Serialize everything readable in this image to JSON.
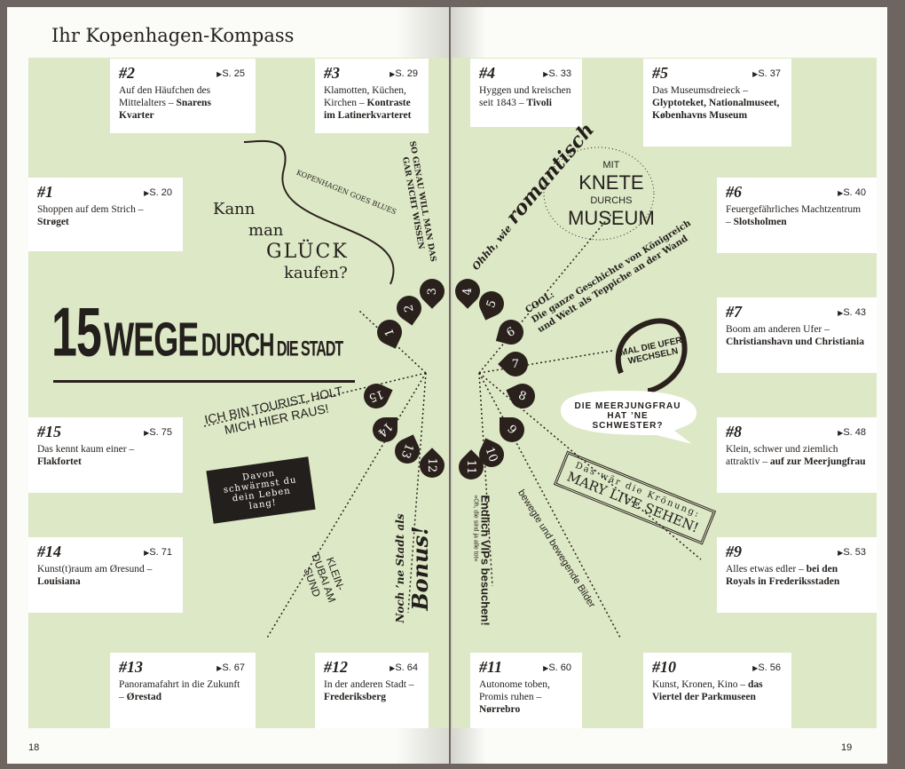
{
  "title": "Ihr Kopenhagen-Kompass",
  "headline": {
    "a": "15",
    "b": "WEGE",
    "c": "DURCH",
    "d": "DIE STADT"
  },
  "page_left": "18",
  "page_right": "19",
  "cards": [
    {
      "id": "#1",
      "page": "S. 20",
      "text": "Shoppen auf dem Strich –",
      "bold": "Strøget"
    },
    {
      "id": "#2",
      "page": "S. 25",
      "text": "Auf den Häufchen des Mittelalters –",
      "bold": "Snarens Kvarter"
    },
    {
      "id": "#3",
      "page": "S. 29",
      "text": "Klamotten, Küchen, Kirchen –",
      "bold": "Kontraste im Latinerkvarteret"
    },
    {
      "id": "#4",
      "page": "S. 33",
      "text": "Hyggen und kreischen seit 1843 –",
      "bold": "Tivoli"
    },
    {
      "id": "#5",
      "page": "S. 37",
      "text": "Das Museumsdreieck –",
      "bold": "Glyptoteket, Nationalmuseet, Københavns Museum"
    },
    {
      "id": "#6",
      "page": "S. 40",
      "text": "Feuergefährliches Machtzentrum –",
      "bold": "Slotsholmen"
    },
    {
      "id": "#7",
      "page": "S. 43",
      "text": "Boom am anderen Ufer –",
      "bold": "Christianshavn und Christiania"
    },
    {
      "id": "#8",
      "page": "S. 48",
      "text": "Klein, schwer und ziemlich attraktiv –",
      "bold": "auf zur Meerjungfrau"
    },
    {
      "id": "#9",
      "page": "S. 53",
      "text": "Alles etwas edler –",
      "bold": "bei den Royals in Frederiksstaden"
    },
    {
      "id": "#10",
      "page": "S. 56",
      "text": "Kunst, Kronen, Kino –",
      "bold": "das Viertel der Parkmuseen"
    },
    {
      "id": "#11",
      "page": "S. 60",
      "text": "Autonome toben, Promis ruhen –",
      "bold": "Nørrebro"
    },
    {
      "id": "#12",
      "page": "S. 64",
      "text": "In der anderen Stadt –",
      "bold": "Frederiksberg"
    },
    {
      "id": "#13",
      "page": "S. 67",
      "text": "Panoramafahrt in die Zukunft –",
      "bold": "Ørestad"
    },
    {
      "id": "#14",
      "page": "S. 71",
      "text": "Kunst(t)raum am Øresund –",
      "bold": "Louisiana"
    },
    {
      "id": "#15",
      "page": "S. 75",
      "text": "Das kennt kaum einer –",
      "bold": "Flakfortet"
    }
  ],
  "captions": {
    "glueck1": "Kann",
    "glueck2": "man",
    "glueck3": "GLÜCK",
    "glueck4": "kaufen?",
    "blues": "KOPENHAGEN GOES BLUES",
    "genau": "SO GENAU WILL MAN DAS GAR NICHT WISSEN",
    "romantisch1": "Ohhh, wie",
    "romantisch2": "romantisch",
    "knete1": "MIT",
    "knete2": "KNETE",
    "knete3": "DURCHS",
    "knete4": "MUSEUM",
    "cool1": "COOL:",
    "cool2": "Die ganze Geschichte von Königreich",
    "cool3": "und Welt als Teppiche an der Wand",
    "ufer": "MAL DIE UFER WECHSELN",
    "meer": "DIE MEERJUNGFRAU HAT ’NE SCHWESTER?",
    "mary1": "Das wär die Krönung:",
    "mary2": "MARY LIVE SEHEN!",
    "bilder": "bewegte und bewegende Bilder",
    "vips": "Endlich VIPs besuchen!",
    "vips2": "»Oh, die sind ja alle tot«",
    "bonus1": "Noch ’ne Stadt als",
    "bonus2": "Bonus!",
    "dubai": "KLEIN-DUBAI AM SUND",
    "schwaerm": "Davon schwärmst du dein Leben lang!",
    "tourist": "ICH BIN TOURIST, HOLT MICH HIER RAUS!"
  },
  "pins": [
    "1",
    "2",
    "3",
    "4",
    "5",
    "6",
    "7",
    "8",
    "9",
    "10",
    "11",
    "12",
    "13",
    "14",
    "15"
  ],
  "colors": {
    "green": "#dde8c6",
    "ink": "#2a211d",
    "paper": "#fbfbf8"
  }
}
